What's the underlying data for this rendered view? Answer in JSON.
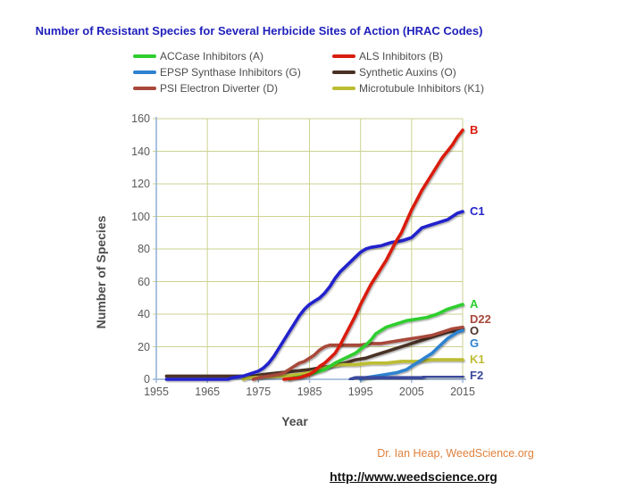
{
  "title": {
    "text": "Number of Resistant Species for Several Herbicide Sites of Action (HRAC Codes)"
  },
  "legend": {
    "items": [
      {
        "label": "ACCase Inhibitors (A)",
        "code": "A",
        "color": "#2FCE2F",
        "row": 0,
        "col": 0
      },
      {
        "label": "ALS Inhibitors (B)",
        "code": "B",
        "color": "#D91C10",
        "row": 0,
        "col": 1
      },
      {
        "label": "EPSP Synthase Inhibitors (G)",
        "code": "G",
        "color": "#2E82CF",
        "row": 1,
        "col": 0
      },
      {
        "label": "Synthetic Auxins (O)",
        "code": "O",
        "color": "#4A3227",
        "row": 1,
        "col": 1
      },
      {
        "label": "PSI Electron Diverter (D)",
        "code": "D",
        "color": "#A8483A",
        "row": 2,
        "col": 0
      },
      {
        "label": "Microtubule Inhibitors (K1)",
        "code": "K1",
        "color": "#BCBD32",
        "row": 2,
        "col": 1
      }
    ]
  },
  "chart_data": {
    "type": "line",
    "title": "Number of Resistant Species for Several Herbicide Sites of Action (HRAC Codes)",
    "xlabel": "Year",
    "ylabel": "Number of Species",
    "xlim": [
      1955,
      2015
    ],
    "ylim": [
      0,
      160
    ],
    "x_ticks": [
      1955,
      1965,
      1975,
      1985,
      1995,
      2005,
      2015
    ],
    "y_ticks": [
      0,
      20,
      40,
      60,
      80,
      100,
      120,
      140,
      160
    ],
    "grid": true,
    "legend_position": "top",
    "draw_order": [
      "O",
      "K1",
      "D",
      "A",
      "C1",
      "G",
      "B",
      "F2"
    ],
    "series": [
      {
        "code": "A",
        "end_label": "A",
        "color": "#2FCE2F",
        "points": [
          [
            1981,
            0
          ],
          [
            1982,
            1
          ],
          [
            1984,
            2
          ],
          [
            1986,
            4
          ],
          [
            1988,
            6
          ],
          [
            1989,
            8
          ],
          [
            1990,
            10
          ],
          [
            1992,
            13
          ],
          [
            1994,
            16
          ],
          [
            1996,
            21
          ],
          [
            1997,
            24
          ],
          [
            1998,
            28
          ],
          [
            2000,
            32
          ],
          [
            2002,
            34
          ],
          [
            2004,
            36
          ],
          [
            2006,
            37
          ],
          [
            2008,
            38
          ],
          [
            2010,
            40
          ],
          [
            2012,
            43
          ],
          [
            2014,
            45
          ],
          [
            2015,
            46
          ]
        ]
      },
      {
        "code": "B",
        "end_label": "B",
        "color": "#D91C10",
        "points": [
          [
            1980,
            0
          ],
          [
            1983,
            1
          ],
          [
            1984,
            2
          ],
          [
            1985,
            3
          ],
          [
            1986,
            5
          ],
          [
            1987,
            8
          ],
          [
            1988,
            10
          ],
          [
            1989,
            13
          ],
          [
            1990,
            16
          ],
          [
            1991,
            21
          ],
          [
            1992,
            27
          ],
          [
            1993,
            33
          ],
          [
            1994,
            39
          ],
          [
            1995,
            46
          ],
          [
            1996,
            52
          ],
          [
            1997,
            58
          ],
          [
            1998,
            63
          ],
          [
            1999,
            68
          ],
          [
            2000,
            73
          ],
          [
            2001,
            79
          ],
          [
            2002,
            85
          ],
          [
            2003,
            90
          ],
          [
            2004,
            97
          ],
          [
            2005,
            104
          ],
          [
            2006,
            110
          ],
          [
            2007,
            116
          ],
          [
            2008,
            121
          ],
          [
            2009,
            126
          ],
          [
            2010,
            131
          ],
          [
            2011,
            136
          ],
          [
            2012,
            140
          ],
          [
            2013,
            144
          ],
          [
            2014,
            149
          ],
          [
            2015,
            153
          ]
        ]
      },
      {
        "code": "G",
        "end_label": "G",
        "color": "#2E82CF",
        "points": [
          [
            1995,
            0
          ],
          [
            1996,
            1
          ],
          [
            1998,
            2
          ],
          [
            2000,
            3
          ],
          [
            2002,
            4
          ],
          [
            2004,
            6
          ],
          [
            2005,
            8
          ],
          [
            2006,
            10
          ],
          [
            2007,
            12
          ],
          [
            2008,
            14
          ],
          [
            2009,
            16
          ],
          [
            2010,
            19
          ],
          [
            2011,
            22
          ],
          [
            2012,
            25
          ],
          [
            2013,
            27
          ],
          [
            2014,
            29
          ],
          [
            2015,
            30
          ]
        ]
      },
      {
        "code": "O",
        "end_label": "O",
        "color": "#4A3227",
        "points": [
          [
            1957,
            2
          ],
          [
            1974,
            2
          ],
          [
            1976,
            3
          ],
          [
            1979,
            4
          ],
          [
            1982,
            5
          ],
          [
            1985,
            6
          ],
          [
            1987,
            7
          ],
          [
            1989,
            8
          ],
          [
            1992,
            10
          ],
          [
            1994,
            12
          ],
          [
            1996,
            13
          ],
          [
            1998,
            15
          ],
          [
            2000,
            17
          ],
          [
            2002,
            19
          ],
          [
            2004,
            21
          ],
          [
            2006,
            23
          ],
          [
            2008,
            25
          ],
          [
            2010,
            27
          ],
          [
            2012,
            29
          ],
          [
            2014,
            30
          ],
          [
            2015,
            31
          ]
        ]
      },
      {
        "code": "D",
        "end_label": "D22",
        "color": "#A8483A",
        "points": [
          [
            1974,
            0
          ],
          [
            1975,
            1
          ],
          [
            1977,
            2
          ],
          [
            1979,
            3
          ],
          [
            1980,
            4
          ],
          [
            1981,
            6
          ],
          [
            1982,
            8
          ],
          [
            1983,
            10
          ],
          [
            1984,
            11
          ],
          [
            1985,
            13
          ],
          [
            1986,
            15
          ],
          [
            1987,
            18
          ],
          [
            1988,
            20
          ],
          [
            1989,
            21
          ],
          [
            1995,
            21
          ],
          [
            1997,
            22
          ],
          [
            1999,
            22
          ],
          [
            2001,
            23
          ],
          [
            2003,
            24
          ],
          [
            2005,
            25
          ],
          [
            2007,
            26
          ],
          [
            2009,
            27
          ],
          [
            2011,
            29
          ],
          [
            2013,
            31
          ],
          [
            2015,
            32
          ]
        ]
      },
      {
        "code": "K1",
        "end_label": "K1",
        "color": "#BCBD32",
        "points": [
          [
            1972,
            0
          ],
          [
            1973,
            1
          ],
          [
            1980,
            2
          ],
          [
            1983,
            3
          ],
          [
            1985,
            4
          ],
          [
            1986,
            5
          ],
          [
            1987,
            6
          ],
          [
            1988,
            7
          ],
          [
            1989,
            8
          ],
          [
            1991,
            9
          ],
          [
            1994,
            9
          ],
          [
            1997,
            10
          ],
          [
            2000,
            10
          ],
          [
            2003,
            11
          ],
          [
            2006,
            11
          ],
          [
            2009,
            12
          ],
          [
            2015,
            12
          ]
        ]
      },
      {
        "code": "C1",
        "end_label": "C1",
        "color": "#2323CC",
        "points": [
          [
            1957,
            0
          ],
          [
            1969,
            0
          ],
          [
            1970,
            1
          ],
          [
            1972,
            2
          ],
          [
            1974,
            4
          ],
          [
            1975,
            5
          ],
          [
            1976,
            7
          ],
          [
            1977,
            10
          ],
          [
            1978,
            14
          ],
          [
            1979,
            19
          ],
          [
            1980,
            24
          ],
          [
            1981,
            29
          ],
          [
            1982,
            34
          ],
          [
            1983,
            39
          ],
          [
            1984,
            43
          ],
          [
            1985,
            46
          ],
          [
            1986,
            48
          ],
          [
            1987,
            50
          ],
          [
            1988,
            53
          ],
          [
            1989,
            57
          ],
          [
            1990,
            62
          ],
          [
            1991,
            66
          ],
          [
            1992,
            69
          ],
          [
            1993,
            72
          ],
          [
            1994,
            75
          ],
          [
            1995,
            78
          ],
          [
            1996,
            80
          ],
          [
            1997,
            81
          ],
          [
            1999,
            82
          ],
          [
            2000,
            83
          ],
          [
            2001,
            84
          ],
          [
            2003,
            85
          ],
          [
            2004,
            86
          ],
          [
            2005,
            87
          ],
          [
            2006,
            90
          ],
          [
            2007,
            93
          ],
          [
            2008,
            94
          ],
          [
            2009,
            95
          ],
          [
            2010,
            96
          ],
          [
            2011,
            97
          ],
          [
            2012,
            98
          ],
          [
            2013,
            100
          ],
          [
            2014,
            102
          ],
          [
            2015,
            103
          ]
        ]
      },
      {
        "code": "F2",
        "end_label": "F2",
        "color": "#3A489C",
        "points": [
          [
            1993,
            0
          ],
          [
            1994,
            1
          ],
          [
            2007,
            1
          ],
          [
            2008,
            2
          ],
          [
            2015,
            2
          ]
        ]
      }
    ]
  },
  "footer": {
    "credit": "Dr. Ian Heap, WeedScience.org",
    "url": "http://www.weedscience.org"
  },
  "colors": {
    "grid": "#CDD290",
    "axis": "#95B3D7",
    "title": "#1F1FBC",
    "tick_text": "#595959",
    "label_text": "#4D4D4D",
    "credit": "#E0813C"
  }
}
